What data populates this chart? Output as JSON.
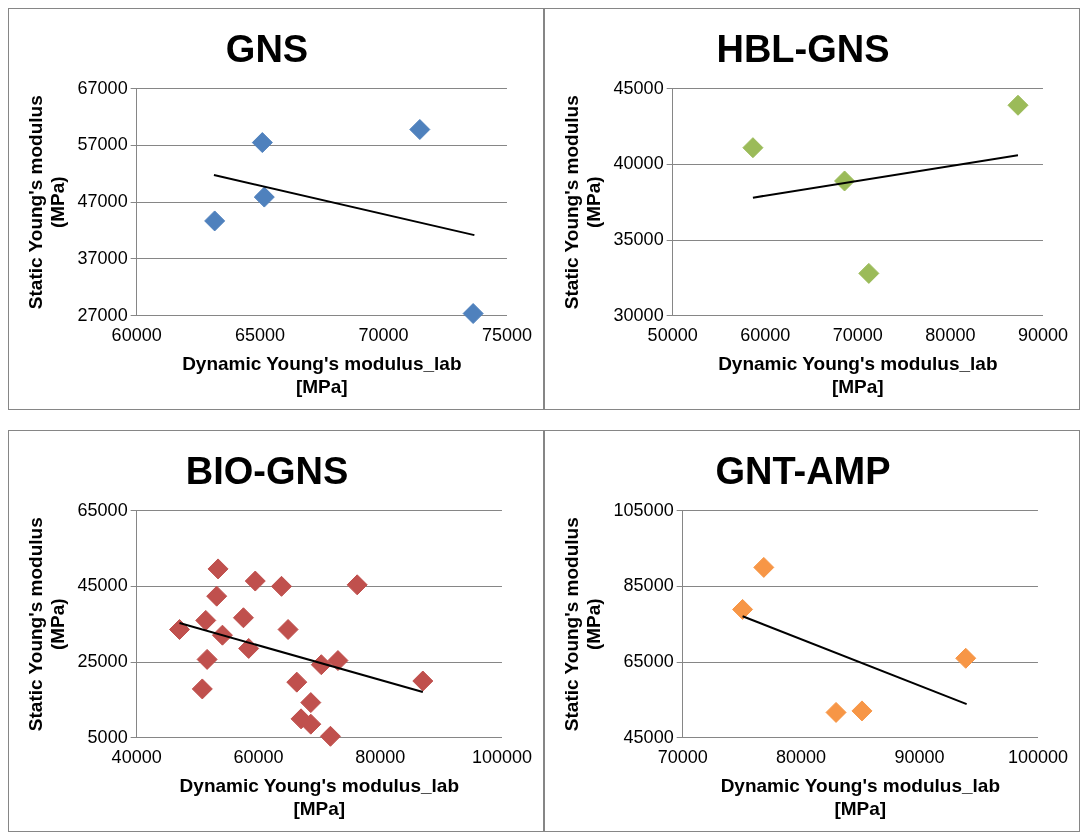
{
  "chart_data": [
    {
      "type": "scatter",
      "title": "GNS",
      "xlabel": "Dynamic Young's modulus_lab [MPa]",
      "ylabel": "Static Young's modulus (MPa)",
      "xlim": [
        60000,
        75000
      ],
      "xticks": [
        60000,
        65000,
        70000,
        75000
      ],
      "ylim": [
        27000,
        67000
      ],
      "yticks": [
        27000,
        37000,
        47000,
        57000,
        67000
      ],
      "grid": "y",
      "legend": false,
      "series": [
        {
          "marker": "diamond",
          "color": "#4f81bd",
          "x": [
            63160,
            65090,
            65170,
            71470,
            73630
          ],
          "values": [
            43700,
            57500,
            47900,
            59800,
            27400
          ]
        },
        {
          "type": "line",
          "color": "#000000",
          "x": [
            63130,
            73680
          ],
          "values": [
            51800,
            41200
          ]
        }
      ]
    },
    {
      "type": "scatter",
      "title": "HBL-GNS",
      "xlabel": "Dynamic Young's modulus_lab [MPa]",
      "ylabel": "Static Young's modulus (MPa)",
      "xlim": [
        50000,
        90000
      ],
      "xticks": [
        50000,
        60000,
        70000,
        80000,
        90000
      ],
      "ylim": [
        30000,
        45000
      ],
      "yticks": [
        30000,
        35000,
        40000,
        45000
      ],
      "grid": "y",
      "legend": false,
      "series": [
        {
          "marker": "diamond",
          "color": "#9bbb59",
          "x": [
            58670,
            68570,
            71190,
            87300
          ],
          "values": [
            41100,
            38900,
            32800,
            43900
          ]
        },
        {
          "type": "line",
          "color": "#000000",
          "x": [
            58670,
            87300
          ],
          "values": [
            37800,
            40600
          ]
        }
      ]
    },
    {
      "type": "scatter",
      "title": "BIO-GNS",
      "xlabel": "Dynamic Young's modulus_lab [MPa]",
      "ylabel": "Static Young's modulus (MPa)",
      "xlim": [
        40000,
        100000
      ],
      "xticks": [
        40000,
        60000,
        80000,
        100000
      ],
      "ylim": [
        5000,
        65000
      ],
      "yticks": [
        5000,
        25000,
        45000,
        65000
      ],
      "grid": "y",
      "legend": false,
      "series": [
        {
          "marker": "diamond",
          "color": "#c0504d",
          "x": [
            53370,
            59480,
            63790,
            76220,
            53150,
            57540,
            51350,
            47040,
            64870,
            54090,
            58400,
            51570,
            70330,
            73060,
            66300,
            50780,
            68600,
            87000,
            67000,
            68600,
            71830
          ],
          "values": [
            49600,
            46400,
            45000,
            45400,
            42400,
            36700,
            36000,
            33600,
            33600,
            32100,
            28600,
            25700,
            24300,
            25400,
            19700,
            17900,
            14300,
            20000,
            10000,
            8600,
            5400
          ]
        },
        {
          "type": "line",
          "color": "#000000",
          "x": [
            47040,
            87000
          ],
          "values": [
            35300,
            17100
          ]
        }
      ]
    },
    {
      "type": "scatter",
      "title": "GNT-AMP",
      "xlabel": "Dynamic Young's modulus_lab [MPa]",
      "ylabel": "Static Young's modulus (MPa)",
      "xlim": [
        70000,
        100000
      ],
      "xticks": [
        70000,
        80000,
        90000,
        100000
      ],
      "ylim": [
        45000,
        105000
      ],
      "yticks": [
        45000,
        65000,
        85000,
        105000
      ],
      "grid": "y",
      "legend": false,
      "series": [
        {
          "marker": "diamond",
          "color": "#f79646",
          "x": [
            75060,
            76850,
            82950,
            85140,
            93900
          ],
          "values": [
            78900,
            90000,
            51700,
            52100,
            66000
          ]
        },
        {
          "type": "line",
          "color": "#000000",
          "x": [
            75060,
            93980
          ],
          "values": [
            77100,
            53900
          ]
        }
      ]
    }
  ]
}
